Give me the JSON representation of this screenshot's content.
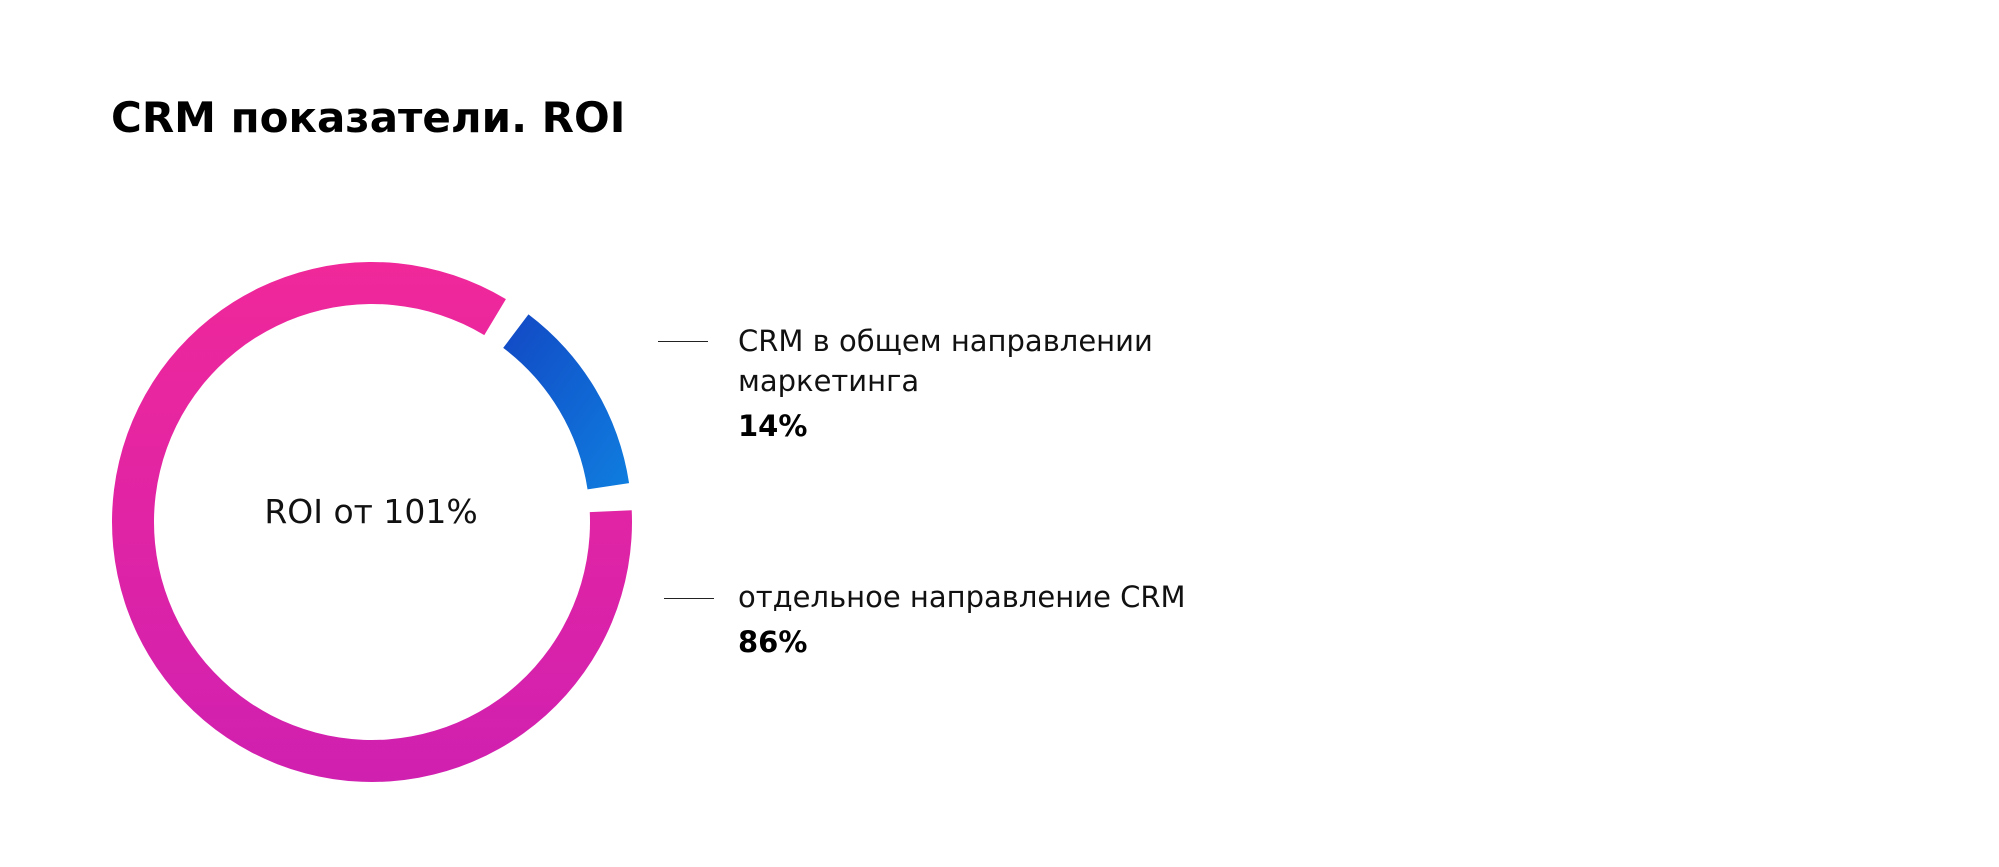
{
  "header": {
    "title": "CRM показатели. ROI"
  },
  "chart_data": {
    "type": "pie",
    "title": "",
    "center_label": "ROI от 101%",
    "categories": [
      "CRM в общем направлении маркетинга",
      "отдельное направление CRM"
    ],
    "values": [
      14,
      86
    ],
    "value_labels": [
      "14%",
      "86%"
    ],
    "legend": [
      {
        "lines": [
          "CRM в общем направлении",
          "маркетинга"
        ],
        "value": "14%",
        "color_start": "#1248c4",
        "color_end": "#0f7ee0"
      },
      {
        "lines": [
          "отдельное направление CRM"
        ],
        "value": "86%",
        "color_start": "#f0289a",
        "color_end": "#d020b0"
      }
    ],
    "legend_placement": "right"
  }
}
